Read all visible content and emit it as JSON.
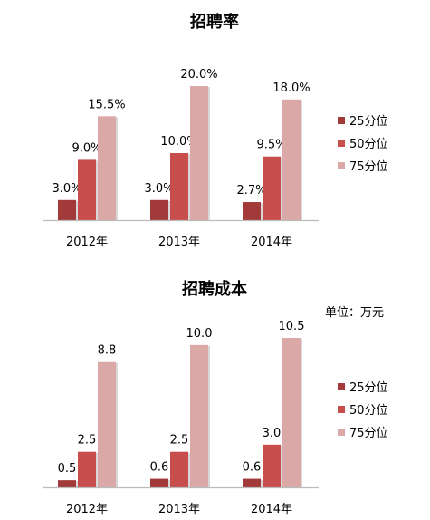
{
  "colors": {
    "p25": "#A23A3A",
    "p50": "#C84E4E",
    "p75": "#DBA8A8",
    "axis": "#BBBBBB"
  },
  "chart_data": [
    {
      "type": "bar",
      "title": "招聘率",
      "categories": [
        "2012年",
        "2013年",
        "2014年"
      ],
      "series": [
        {
          "name": "25分位",
          "values": [
            3.0,
            3.0,
            2.7
          ],
          "labels": [
            "3.0%",
            "3.0%",
            "2.7%"
          ]
        },
        {
          "name": "50分位",
          "values": [
            9.0,
            10.0,
            9.5
          ],
          "labels": [
            "9.0%",
            "10.0%",
            "9.5%"
          ]
        },
        {
          "name": "75分位",
          "values": [
            15.5,
            20.0,
            18.0
          ],
          "labels": [
            "15.5%",
            "20.0%",
            "18.0%"
          ]
        }
      ],
      "ylim": [
        0,
        20
      ],
      "grid": false,
      "legend": "right"
    },
    {
      "type": "bar",
      "title": "招聘成本",
      "unit_label": "单位：万元",
      "categories": [
        "2012年",
        "2013年",
        "2014年"
      ],
      "series": [
        {
          "name": "25分位",
          "values": [
            0.5,
            0.6,
            0.6
          ],
          "labels": [
            "0.5",
            "0.6",
            "0.6"
          ]
        },
        {
          "name": "50分位",
          "values": [
            2.5,
            2.5,
            3.0
          ],
          "labels": [
            "2.5",
            "2.5",
            "3.0"
          ]
        },
        {
          "name": "75分位",
          "values": [
            8.8,
            10.0,
            10.5
          ],
          "labels": [
            "8.8",
            "10.0",
            "10.5"
          ]
        }
      ],
      "ylim": [
        0,
        10.5
      ],
      "grid": false,
      "legend": "right"
    }
  ]
}
